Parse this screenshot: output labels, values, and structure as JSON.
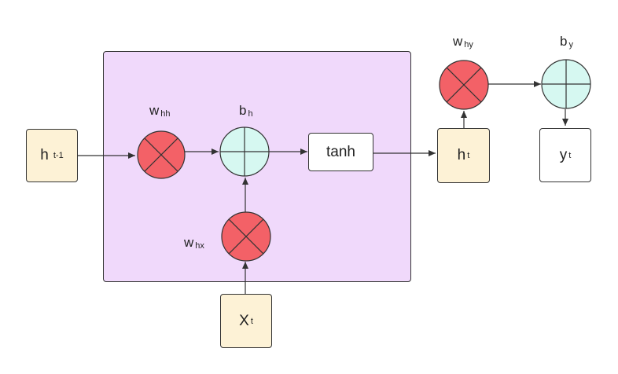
{
  "colors": {
    "multiply_fill": "#f36167",
    "add_fill": "#d6f8f1",
    "input_fill": "#fdf2d6",
    "cell_fill": "#f0d9fb",
    "stroke": "#333333"
  },
  "nodes": {
    "h_prev": {
      "main": "h",
      "sub": "t-1"
    },
    "x_t": {
      "main": "X",
      "sub": "t"
    },
    "tanh": {
      "main": "tanh"
    },
    "h_t": {
      "main": "h",
      "sub": "t"
    },
    "y_t": {
      "main": "y",
      "sub": "t"
    }
  },
  "operators": {
    "w_hh": {
      "main": "w",
      "sub": "hh",
      "icon": "multiply-icon"
    },
    "b_h": {
      "main": "b",
      "sub": "h",
      "icon": "add-icon"
    },
    "w_hx": {
      "main": "w",
      "sub": "hx",
      "icon": "multiply-icon"
    },
    "w_hy": {
      "main": "w",
      "sub": "hy",
      "icon": "multiply-icon"
    },
    "b_y": {
      "main": "b",
      "sub": "y",
      "icon": "add-icon"
    }
  }
}
